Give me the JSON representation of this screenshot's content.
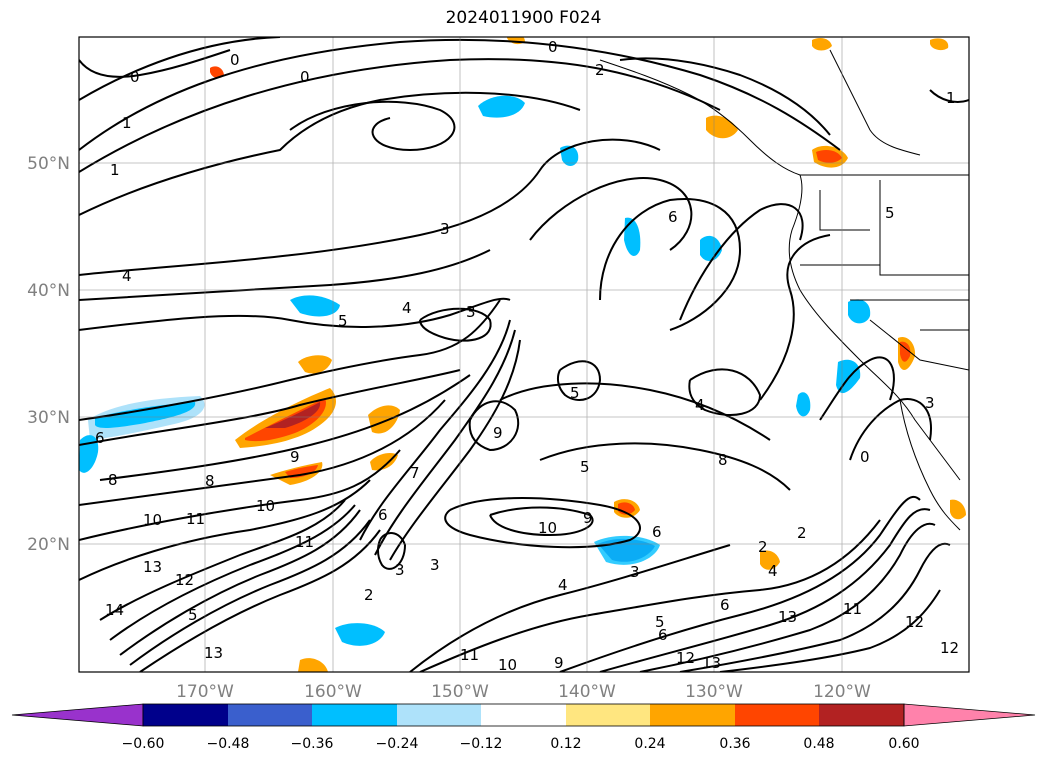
{
  "title": "2024011900 F024",
  "lat_labels": [
    "50°N",
    "40°N",
    "30°N",
    "20°N"
  ],
  "lon_labels": [
    "170°W",
    "160°W",
    "150°W",
    "140°W",
    "130°W",
    "120°W"
  ],
  "colorbar": {
    "ticks": [
      "−0.60",
      "−0.48",
      "−0.36",
      "−0.24",
      "−0.12",
      "0.12",
      "0.24",
      "0.36",
      "0.48",
      "0.60"
    ],
    "colors": [
      "#9932cc",
      "#00008b",
      "#3a5fcd",
      "#00bfff",
      "#aee2fa",
      "#ffffff",
      "#ffe680",
      "#ffa500",
      "#ff4500",
      "#b22222",
      "#ff82ab"
    ]
  },
  "contour_labels": [
    "0",
    "0",
    "0",
    "0",
    "1",
    "1",
    "1",
    "2",
    "3",
    "3",
    "3",
    "4",
    "4",
    "5",
    "5",
    "5",
    "6",
    "6",
    "4",
    "5",
    "8",
    "9",
    "9",
    "10",
    "11",
    "13",
    "14",
    "12",
    "13",
    "11",
    "10",
    "8",
    "10",
    "9",
    "6",
    "3",
    "5",
    "6",
    "4",
    "13",
    "11",
    "12",
    "12",
    "13",
    "12",
    "10",
    "9",
    "11",
    "2",
    "2",
    "3",
    "8",
    "6",
    "7",
    "0",
    "3",
    "2",
    "4",
    "5",
    "6"
  ]
}
